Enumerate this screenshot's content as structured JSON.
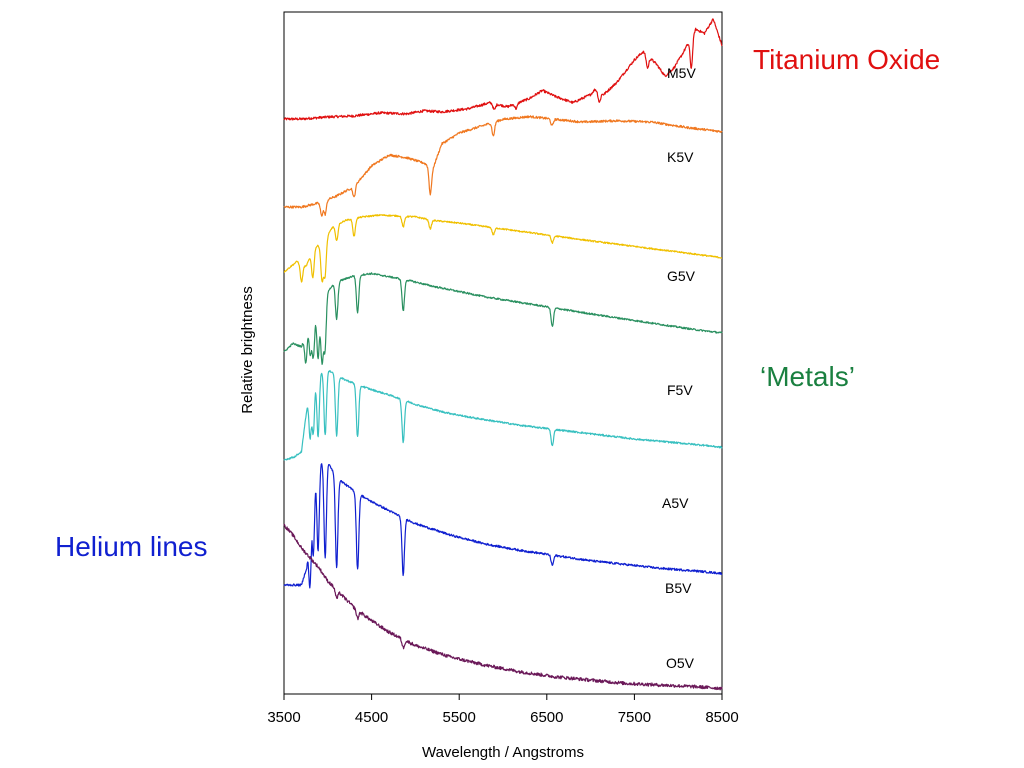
{
  "chart_data": {
    "type": "line",
    "xlabel": "Wavelength / Angstroms",
    "ylabel": "Relative brightness",
    "xlim": [
      3500,
      8500
    ],
    "xticks": [
      "3500",
      "4500",
      "5500",
      "6500",
      "7500",
      "8500"
    ],
    "grid": false,
    "legend": "none",
    "series": [
      {
        "name": "M5V",
        "color": "#e01010",
        "x": [
          3500,
          3700,
          4000,
          4300,
          4600,
          4900,
          5100,
          5300,
          5600,
          5850,
          6050,
          6300,
          6450,
          6600,
          6800,
          7000,
          7050,
          7150,
          7300,
          7500,
          7600,
          7750,
          7850,
          7950,
          8050,
          8200,
          8300,
          8400,
          8500
        ],
        "y": [
          0.0,
          0.0,
          0.02,
          0.03,
          0.06,
          0.05,
          0.08,
          0.07,
          0.1,
          0.16,
          0.12,
          0.2,
          0.28,
          0.22,
          0.16,
          0.24,
          0.29,
          0.24,
          0.36,
          0.58,
          0.66,
          0.54,
          0.42,
          0.5,
          0.64,
          0.88,
          0.84,
          0.98,
          0.72
        ],
        "dips": [
          [
            5900,
            0.06
          ],
          [
            6150,
            0.05
          ],
          [
            7100,
            0.1
          ],
          [
            7650,
            0.12
          ],
          [
            8150,
            0.3
          ]
        ]
      },
      {
        "name": "K5V",
        "color": "#f07820",
        "x": [
          3500,
          3700,
          3900,
          4100,
          4300,
          4500,
          4700,
          4900,
          5100,
          5200,
          5300,
          5500,
          5700,
          6000,
          6300,
          6600,
          6900,
          7300,
          7700,
          8100,
          8500
        ],
        "y": [
          0.0,
          0.0,
          0.03,
          0.08,
          0.15,
          0.3,
          0.38,
          0.36,
          0.32,
          0.28,
          0.46,
          0.54,
          0.58,
          0.64,
          0.66,
          0.64,
          0.62,
          0.63,
          0.62,
          0.58,
          0.55
        ],
        "dips": [
          [
            3930,
            0.1
          ],
          [
            3970,
            0.1
          ],
          [
            4300,
            0.08
          ],
          [
            5170,
            0.2
          ],
          [
            5890,
            0.1
          ],
          [
            6560,
            0.05
          ]
        ]
      },
      {
        "name": "G5V",
        "color": "#f0c000",
        "x": [
          3500,
          3650,
          3750,
          3850,
          3950,
          4050,
          4200,
          4400,
          4600,
          4800,
          5000,
          5200,
          5500,
          5800,
          6100,
          6400,
          6700,
          7000,
          7400,
          7800,
          8200,
          8500
        ],
        "y": [
          0.0,
          0.12,
          0.06,
          0.28,
          0.32,
          0.5,
          0.58,
          0.62,
          0.64,
          0.63,
          0.62,
          0.58,
          0.55,
          0.51,
          0.47,
          0.43,
          0.39,
          0.35,
          0.3,
          0.25,
          0.2,
          0.16
        ],
        "dips": [
          [
            3700,
            0.2
          ],
          [
            3830,
            0.3
          ],
          [
            3934,
            0.4
          ],
          [
            3968,
            0.4
          ],
          [
            4101,
            0.18
          ],
          [
            4300,
            0.2
          ],
          [
            4861,
            0.12
          ],
          [
            5170,
            0.1
          ],
          [
            5890,
            0.08
          ],
          [
            6563,
            0.08
          ]
        ]
      },
      {
        "name": "F5V",
        "color": "#2a9060",
        "x": [
          3500,
          3600,
          3700,
          3800,
          3900,
          4000,
          4100,
          4300,
          4500,
          4700,
          4900,
          5200,
          5500,
          5800,
          6100,
          6400,
          6700,
          7000,
          7400,
          7800,
          8200,
          8500
        ],
        "y": [
          0.0,
          0.08,
          0.05,
          0.34,
          0.4,
          0.58,
          0.66,
          0.72,
          0.74,
          0.71,
          0.68,
          0.62,
          0.57,
          0.52,
          0.48,
          0.44,
          0.4,
          0.36,
          0.31,
          0.26,
          0.21,
          0.18
        ],
        "dips": [
          [
            3750,
            0.3
          ],
          [
            3800,
            0.35
          ],
          [
            3835,
            0.4
          ],
          [
            3889,
            0.45
          ],
          [
            3934,
            0.55
          ],
          [
            3968,
            0.5
          ],
          [
            4101,
            0.35
          ],
          [
            4340,
            0.35
          ],
          [
            4861,
            0.3
          ],
          [
            6563,
            0.18
          ]
        ]
      },
      {
        "name": "A5V",
        "color": "#38c0c0",
        "x": [
          3500,
          3620,
          3700,
          3780,
          3850,
          3950,
          4050,
          4150,
          4300,
          4500,
          4700,
          5000,
          5300,
          5600,
          5900,
          6200,
          6500,
          6800,
          7100,
          7500,
          7900,
          8300,
          8500
        ],
        "y": [
          0.0,
          0.03,
          0.08,
          0.62,
          0.8,
          0.86,
          0.84,
          0.78,
          0.73,
          0.67,
          0.62,
          0.53,
          0.46,
          0.41,
          0.37,
          0.33,
          0.3,
          0.27,
          0.24,
          0.2,
          0.17,
          0.14,
          0.12
        ],
        "dips": [
          [
            3798,
            0.45
          ],
          [
            3835,
            0.5
          ],
          [
            3889,
            0.6
          ],
          [
            3970,
            0.62
          ],
          [
            4101,
            0.58
          ],
          [
            4340,
            0.5
          ],
          [
            4861,
            0.4
          ],
          [
            6563,
            0.16
          ]
        ]
      },
      {
        "name": "B5V",
        "color": "#1020d0",
        "x": [
          3500,
          3600,
          3700,
          3760,
          3820,
          3900,
          4000,
          4100,
          4250,
          4450,
          4700,
          5000,
          5400,
          5800,
          6200,
          6600,
          7000,
          7400,
          7800,
          8200,
          8500
        ],
        "y": [
          0.0,
          0.0,
          0.0,
          0.14,
          0.88,
          0.98,
          0.96,
          0.84,
          0.76,
          0.67,
          0.58,
          0.48,
          0.39,
          0.32,
          0.27,
          0.23,
          0.19,
          0.16,
          0.13,
          0.11,
          0.09
        ],
        "dips": [
          [
            3798,
            0.6
          ],
          [
            3835,
            0.65
          ],
          [
            3889,
            0.7
          ],
          [
            3970,
            0.75
          ],
          [
            4101,
            0.7
          ],
          [
            4340,
            0.6
          ],
          [
            4861,
            0.45
          ],
          [
            6563,
            0.08
          ]
        ]
      },
      {
        "name": "O5V",
        "color": "#6a1858",
        "x": [
          3500,
          3600,
          3700,
          3800,
          3900,
          4000,
          4150,
          4300,
          4500,
          4700,
          5000,
          5400,
          5800,
          6200,
          6600,
          7000,
          7400,
          7800,
          8200,
          8500
        ],
        "y": [
          1.0,
          0.94,
          0.86,
          0.8,
          0.74,
          0.66,
          0.58,
          0.5,
          0.42,
          0.35,
          0.27,
          0.2,
          0.15,
          0.11,
          0.08,
          0.06,
          0.04,
          0.03,
          0.02,
          0.01
        ],
        "dips": [
          [
            4101,
            0.05
          ],
          [
            4340,
            0.05
          ],
          [
            4861,
            0.05
          ]
        ]
      }
    ]
  },
  "annotations": [
    {
      "text": "Titanium Oxide",
      "color": "#e01010"
    },
    {
      "text": "‘Metals’",
      "color": "#1a8040"
    },
    {
      "text": "Helium lines",
      "color": "#1020d0"
    }
  ]
}
